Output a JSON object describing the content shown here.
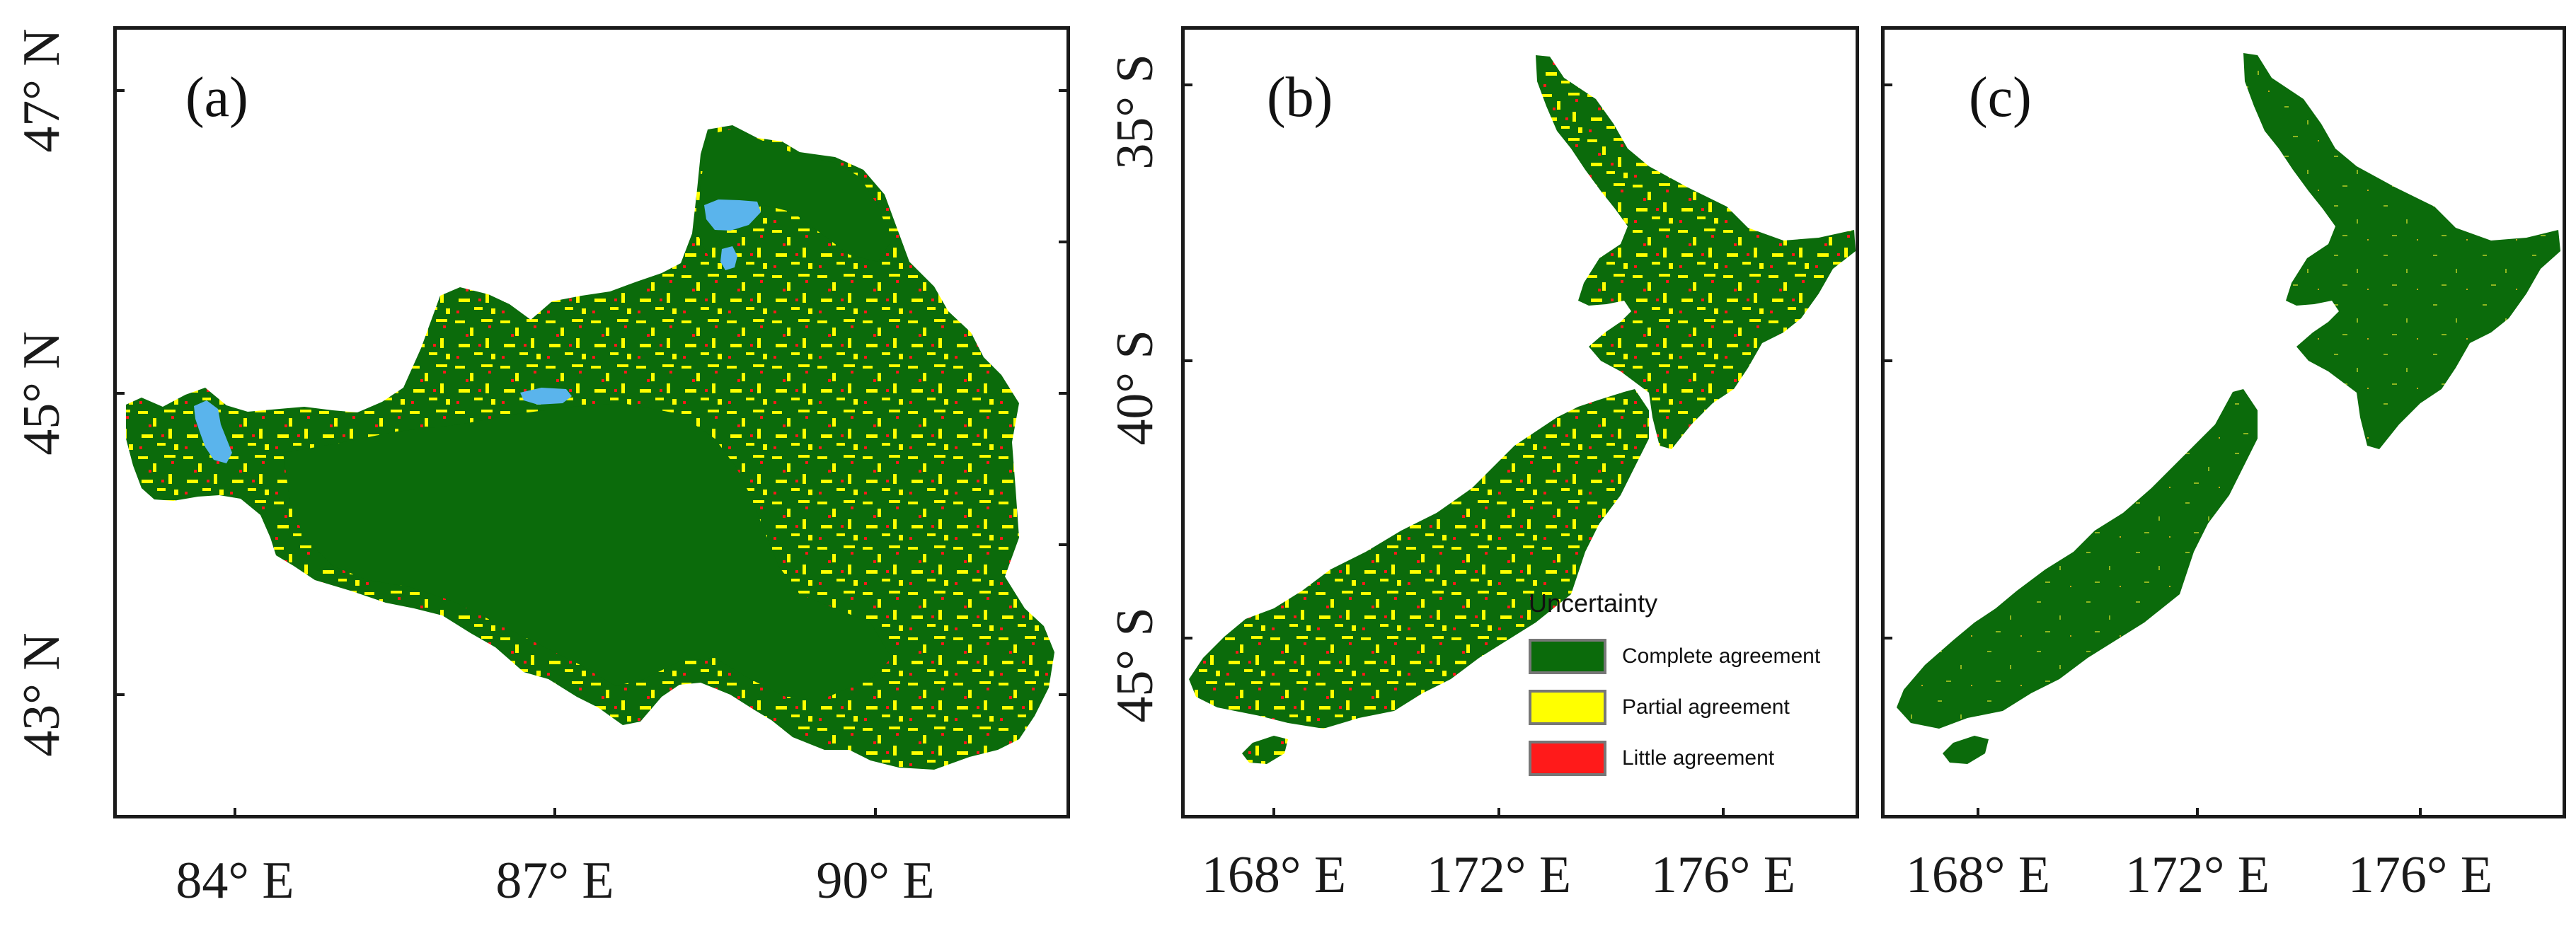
{
  "panels": [
    {
      "letter": "(a)",
      "x_ticks": [
        "84° E",
        "87° E",
        "90° E"
      ],
      "y_ticks": [
        "47° N",
        "45° N",
        "43° N"
      ]
    },
    {
      "letter": "(b)",
      "x_ticks": [
        "168° E",
        "172° E",
        "176° E"
      ],
      "y_ticks": [
        "35° S",
        "40° S",
        "45° S"
      ]
    },
    {
      "letter": "(c)",
      "x_ticks": [
        "168° E",
        "172° E",
        "176° E"
      ],
      "y_ticks": []
    }
  ],
  "legend": {
    "title": "Uncertainty",
    "items": [
      {
        "label": "Complete agreement",
        "color": "#0b6b0b"
      },
      {
        "label": "Partial agreement",
        "color": "#ffff00"
      },
      {
        "label": "Little agreement",
        "color": "#ff1a1a"
      }
    ]
  },
  "colors": {
    "land": "#0b6b0b",
    "partial": "#ffff00",
    "little": "#ff1a1a",
    "water": "#5ab4ec",
    "frame": "#1a1a1a"
  }
}
